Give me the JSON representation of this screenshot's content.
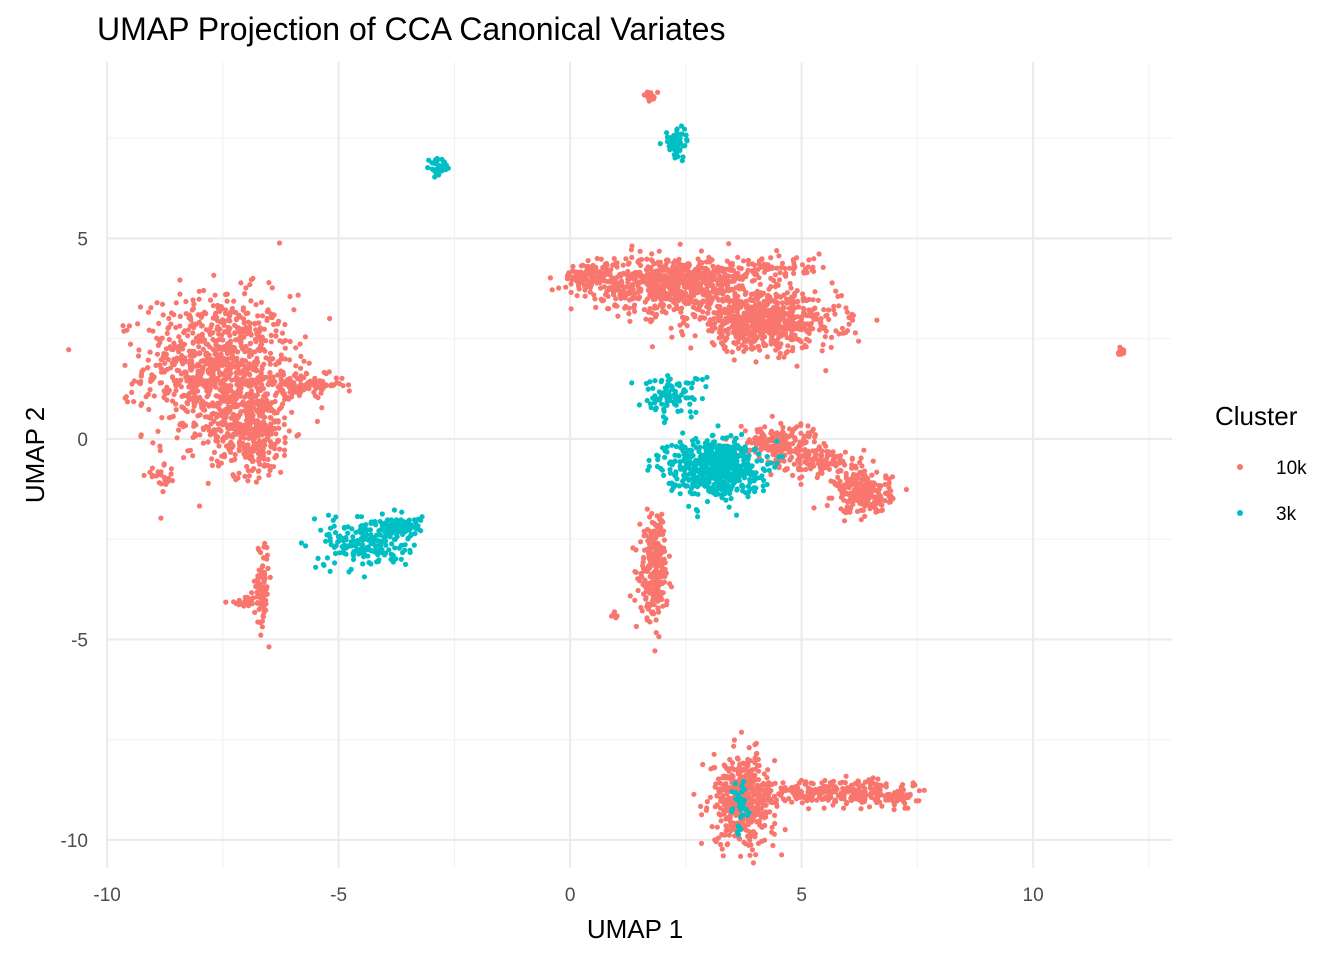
{
  "chart_data": {
    "type": "scatter",
    "title": "UMAP Projection of CCA Canonical Variates",
    "xlabel": "UMAP 1",
    "ylabel": "UMAP 2",
    "xlim": [
      -10.5,
      13
    ],
    "ylim": [
      -10.7,
      9.4
    ],
    "x_ticks": [
      -10,
      -5,
      0,
      5,
      10
    ],
    "y_ticks": [
      -10,
      -5,
      0,
      5
    ],
    "x_tick_labels": [
      "-10",
      "-5",
      "0",
      "5",
      "10"
    ],
    "y_tick_labels": [
      "-10",
      "-5",
      "0",
      "5"
    ],
    "grid": true,
    "legend": {
      "title": "Cluster",
      "position": "right"
    },
    "series": [
      {
        "name": "10k",
        "color": "#F8766D",
        "clusters": [
          {
            "cx": -7.6,
            "cy": 1.8,
            "sx": 0.8,
            "sy": 0.9,
            "n": 900
          },
          {
            "cx": -6.9,
            "cy": 0.2,
            "sx": 0.45,
            "sy": 0.55,
            "n": 350
          },
          {
            "cx": -5.8,
            "cy": 1.35,
            "sx": 0.45,
            "sy": 0.12,
            "n": 120
          },
          {
            "cx": -8.8,
            "cy": -1.0,
            "sx": 0.18,
            "sy": 0.15,
            "n": 25
          },
          {
            "cx": -6.65,
            "cy": -3.6,
            "sx": 0.07,
            "sy": 0.55,
            "n": 80
          },
          {
            "cx": -7.0,
            "cy": -4.1,
            "sx": 0.2,
            "sy": 0.1,
            "n": 25
          },
          {
            "cx": 0.5,
            "cy": 4.05,
            "sx": 0.3,
            "sy": 0.18,
            "n": 130
          },
          {
            "cx": 2.3,
            "cy": 3.85,
            "sx": 0.85,
            "sy": 0.35,
            "n": 700
          },
          {
            "cx": 4.2,
            "cy": 2.9,
            "sx": 0.8,
            "sy": 0.35,
            "n": 650
          },
          {
            "cx": 4.2,
            "cy": 4.25,
            "sx": 0.7,
            "sy": 0.15,
            "n": 80
          },
          {
            "cx": 1.8,
            "cy": -3.4,
            "sx": 0.15,
            "sy": 0.55,
            "n": 220
          },
          {
            "cx": 1.9,
            "cy": -2.3,
            "sx": 0.08,
            "sy": 0.3,
            "n": 30
          },
          {
            "cx": 4.5,
            "cy": -0.1,
            "sx": 0.45,
            "sy": 0.25,
            "n": 180
          },
          {
            "cx": 5.5,
            "cy": -0.6,
            "sx": 0.4,
            "sy": 0.2,
            "n": 120
          },
          {
            "cx": 6.35,
            "cy": -1.35,
            "sx": 0.3,
            "sy": 0.25,
            "n": 220
          },
          {
            "cx": 1.75,
            "cy": 8.55,
            "sx": 0.07,
            "sy": 0.07,
            "n": 20
          },
          {
            "cx": 11.9,
            "cy": 2.15,
            "sx": 0.04,
            "sy": 0.05,
            "n": 12
          },
          {
            "cx": 0.95,
            "cy": -4.4,
            "sx": 0.04,
            "sy": 0.04,
            "n": 6
          },
          {
            "cx": 3.75,
            "cy": -9.0,
            "sx": 0.35,
            "sy": 0.55,
            "n": 450
          },
          {
            "cx": 5.8,
            "cy": -8.8,
            "sx": 0.75,
            "sy": 0.15,
            "n": 250
          },
          {
            "cx": 7.0,
            "cy": -8.95,
            "sx": 0.25,
            "sy": 0.1,
            "n": 60
          }
        ]
      },
      {
        "name": "3k",
        "color": "#00BFC4",
        "clusters": [
          {
            "cx": -4.4,
            "cy": -2.6,
            "sx": 0.45,
            "sy": 0.3,
            "n": 200
          },
          {
            "cx": -3.7,
            "cy": -2.2,
            "sx": 0.25,
            "sy": 0.12,
            "n": 120
          },
          {
            "cx": 3.1,
            "cy": -0.7,
            "sx": 0.5,
            "sy": 0.35,
            "n": 600
          },
          {
            "cx": 2.2,
            "cy": 1.1,
            "sx": 0.35,
            "sy": 0.25,
            "n": 100
          },
          {
            "cx": 2.3,
            "cy": 7.4,
            "sx": 0.12,
            "sy": 0.2,
            "n": 60
          },
          {
            "cx": -2.85,
            "cy": 6.75,
            "sx": 0.12,
            "sy": 0.12,
            "n": 30
          },
          {
            "cx": 3.7,
            "cy": -9.2,
            "sx": 0.1,
            "sy": 0.35,
            "n": 30
          }
        ]
      }
    ]
  }
}
